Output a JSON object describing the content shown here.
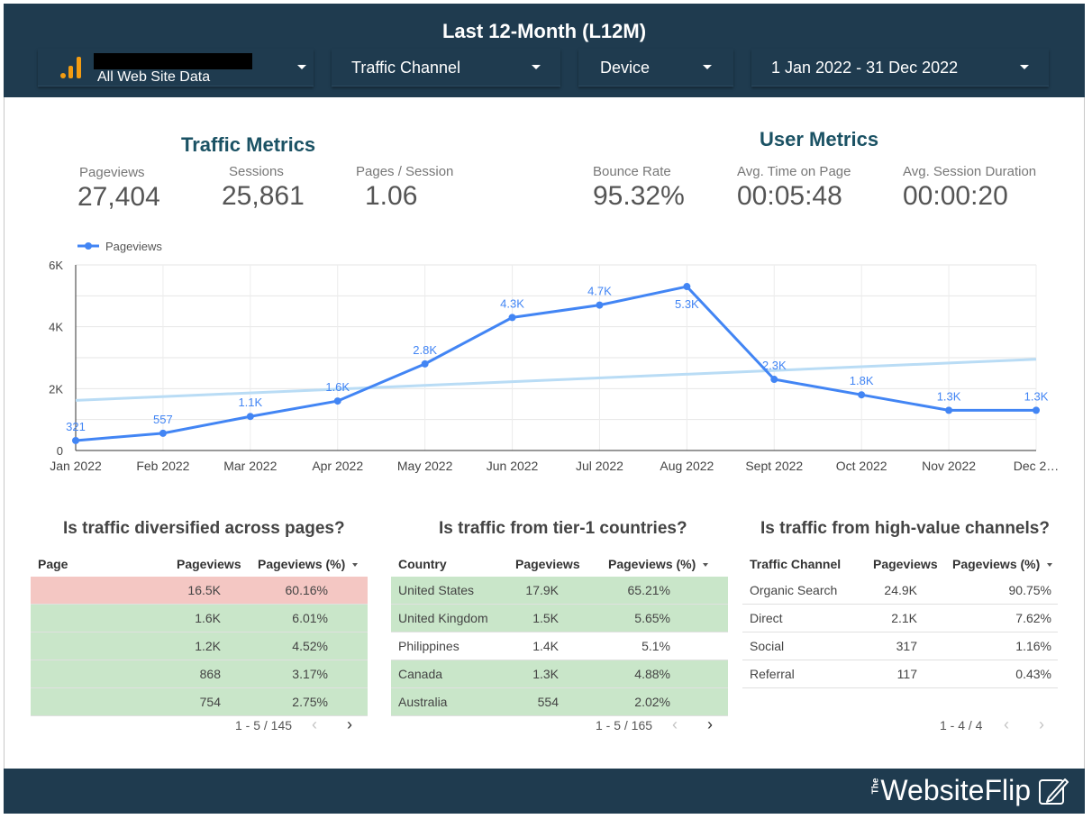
{
  "header": {
    "title": "Last 12-Month (L12M)",
    "controls": {
      "property": {
        "label": "All Web Site Data"
      },
      "traffic_channel": {
        "label": "Traffic Channel"
      },
      "device": {
        "label": "Device"
      },
      "date_range": {
        "label": "1 Jan 2022 - 31 Dec 2022"
      }
    }
  },
  "traffic_metrics": {
    "title": "Traffic Metrics",
    "items": [
      {
        "label": "Pageviews",
        "value": "27,404"
      },
      {
        "label": "Sessions",
        "value": "25,861"
      },
      {
        "label": "Pages / Session",
        "value": "1.06"
      }
    ]
  },
  "user_metrics": {
    "title": "User Metrics",
    "items": [
      {
        "label": "Bounce Rate",
        "value": "95.32%"
      },
      {
        "label": "Avg. Time on Page",
        "value": "00:05:48"
      },
      {
        "label": "Avg. Session Duration",
        "value": "00:00:20"
      }
    ]
  },
  "chart_data": {
    "type": "line",
    "categories": [
      "Jan 2022",
      "Feb 2022",
      "Mar 2022",
      "Apr 2022",
      "May 2022",
      "Jun 2022",
      "Jul 2022",
      "Aug 2022",
      "Sept 2022",
      "Oct 2022",
      "Nov 2022",
      "Dec 2…"
    ],
    "series": [
      {
        "name": "Pageviews",
        "values": [
          321,
          557,
          1100,
          1600,
          2800,
          4300,
          4700,
          5300,
          2300,
          1800,
          1300,
          1300
        ],
        "labels": [
          "321",
          "557",
          "1.1K",
          "1.6K",
          "2.8K",
          "4.3K",
          "4.7K",
          "5.3K",
          "2.3K",
          "1.8K",
          "1.3K",
          "1.3K"
        ],
        "color": "#4285f4"
      }
    ],
    "trend": {
      "start": 1620,
      "end": 2950,
      "color": "#b9dcf5"
    },
    "ylim": [
      0,
      6000
    ],
    "yticks": [
      0,
      2000,
      4000,
      6000
    ],
    "ytick_labels": [
      "0",
      "2K",
      "4K",
      "6K"
    ],
    "grid": true,
    "legend": "top-left"
  },
  "tables": {
    "pages": {
      "title": "Is traffic diversified across pages?",
      "headers": [
        "Page",
        "Pageviews",
        "Pageviews (%)"
      ],
      "rows": [
        {
          "page": "",
          "pageviews": "16.5K",
          "pct": "60.16%",
          "bg": "#f4c7c3"
        },
        {
          "page": "",
          "pageviews": "1.6K",
          "pct": "6.01%",
          "bg": "#c9e6c9"
        },
        {
          "page": "",
          "pageviews": "1.2K",
          "pct": "4.52%",
          "bg": "#c9e6c9"
        },
        {
          "page": "",
          "pageviews": "868",
          "pct": "3.17%",
          "bg": "#c9e6c9"
        },
        {
          "page": "",
          "pageviews": "754",
          "pct": "2.75%",
          "bg": "#c9e6c9"
        }
      ],
      "pager": "1 - 5 / 145"
    },
    "countries": {
      "title": "Is traffic from tier-1 countries?",
      "headers": [
        "Country",
        "Pageviews",
        "Pageviews (%)"
      ],
      "rows": [
        {
          "name": "United States",
          "pageviews": "17.9K",
          "pct": "65.21%",
          "bg": "#c9e6c9"
        },
        {
          "name": "United Kingdom",
          "pageviews": "1.5K",
          "pct": "5.65%",
          "bg": "#c9e6c9"
        },
        {
          "name": "Philippines",
          "pageviews": "1.4K",
          "pct": "5.1%",
          "bg": "#ffffff"
        },
        {
          "name": "Canada",
          "pageviews": "1.3K",
          "pct": "4.88%",
          "bg": "#c9e6c9"
        },
        {
          "name": "Australia",
          "pageviews": "554",
          "pct": "2.02%",
          "bg": "#c9e6c9"
        }
      ],
      "pager": "1 - 5 / 165"
    },
    "channels": {
      "title": "Is traffic from high-value channels?",
      "headers": [
        "Traffic Channel",
        "Pageviews",
        "Pageviews (%)"
      ],
      "rows": [
        {
          "name": "Organic Search",
          "pageviews": "24.9K",
          "pct": "90.75%",
          "bg": "#ffffff"
        },
        {
          "name": "Direct",
          "pageviews": "2.1K",
          "pct": "7.62%",
          "bg": "#ffffff"
        },
        {
          "name": "Social",
          "pageviews": "317",
          "pct": "1.16%",
          "bg": "#ffffff"
        },
        {
          "name": "Referral",
          "pageviews": "117",
          "pct": "0.43%",
          "bg": "#ffffff"
        }
      ],
      "pager": "1 - 4 / 4"
    }
  },
  "footer": {
    "brand_prefix": "The",
    "brand": "WebsiteFlip"
  }
}
